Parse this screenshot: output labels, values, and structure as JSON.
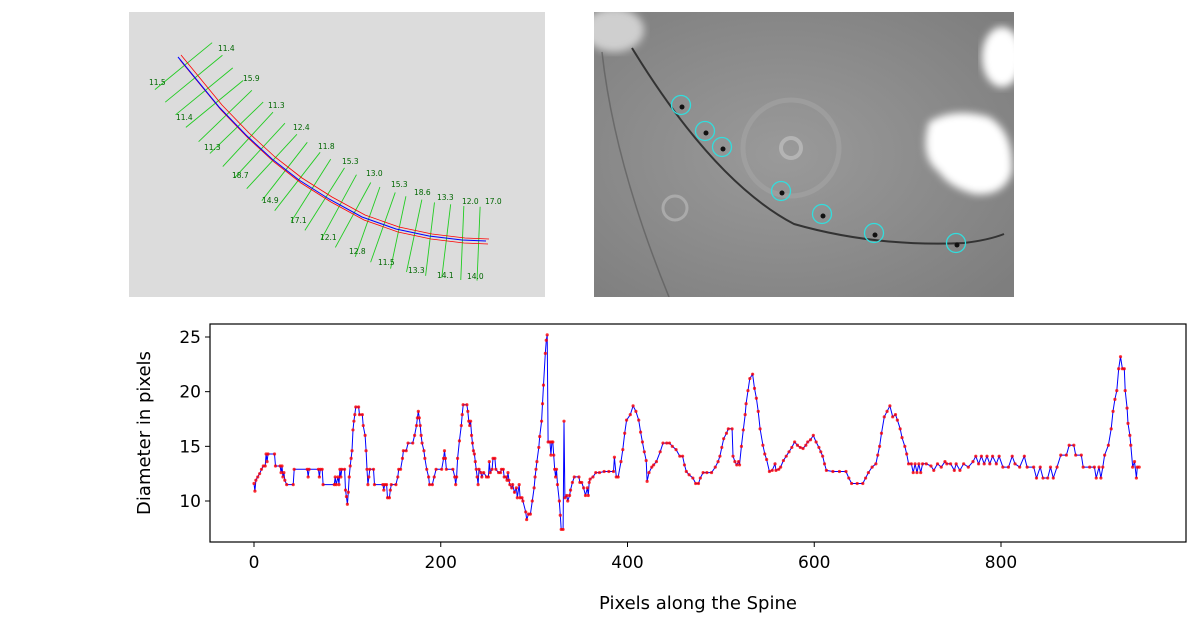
{
  "left_panel": {
    "measurement_labels": [
      "11.5",
      "11.4",
      "11.4",
      "15.9",
      "11.3",
      "11.3",
      "18.7",
      "12.4",
      "14.9",
      "11.8",
      "17.1",
      "15.3",
      "12.1",
      "13.0",
      "12.8",
      "15.3",
      "11.5",
      "18.6",
      "13.3",
      "13.3",
      "14.1",
      "12.0",
      "14.0",
      "17.0"
    ],
    "colors": {
      "spine": "#0000ff",
      "outline": "#ff0000",
      "measure_lines": "#22cc22",
      "labels": "#006600",
      "background": "#dcdcdc"
    }
  },
  "right_panel": {
    "marker_color": "#33dddd",
    "marker_count": 7
  },
  "chart_data": {
    "type": "line",
    "xlabel": "Pixels along the Spine",
    "ylabel": "Diameter in pixels",
    "xlim": [
      -50,
      1000
    ],
    "ylim": [
      6.5,
      26.3
    ],
    "xticks": [
      0,
      200,
      400,
      600,
      800
    ],
    "yticks": [
      10,
      15,
      20,
      25
    ],
    "grid": false,
    "line_color": "#0000ff",
    "marker_color": "#ff0000",
    "points": [
      [
        0,
        11.6
      ],
      [
        1,
        10.9
      ],
      [
        2,
        11.9
      ],
      [
        4,
        12.2
      ],
      [
        6,
        12.5
      ],
      [
        8,
        12.9
      ],
      [
        10,
        13.2
      ],
      [
        12,
        13.2
      ],
      [
        13,
        14.3
      ],
      [
        14,
        13.6
      ],
      [
        15,
        14.3
      ],
      [
        22,
        14.3
      ],
      [
        23,
        13.2
      ],
      [
        28,
        13.2
      ],
      [
        29,
        12.6
      ],
      [
        30,
        13.2
      ],
      [
        31,
        12.2
      ],
      [
        32,
        12.6
      ],
      [
        33,
        11.9
      ],
      [
        35,
        11.5
      ],
      [
        42,
        11.5
      ],
      [
        43,
        12.9
      ],
      [
        57,
        12.9
      ],
      [
        58,
        12.2
      ],
      [
        59,
        12.9
      ],
      [
        69,
        12.9
      ],
      [
        70,
        12.2
      ],
      [
        71,
        12.9
      ],
      [
        73,
        12.9
      ],
      [
        74,
        11.5
      ],
      [
        86,
        11.5
      ],
      [
        87,
        12.2
      ],
      [
        88,
        11.5
      ],
      [
        90,
        12.2
      ],
      [
        91,
        11.5
      ],
      [
        92,
        12.9
      ],
      [
        93,
        12.2
      ],
      [
        94,
        12.9
      ],
      [
        97,
        12.9
      ],
      [
        98,
        11.0
      ],
      [
        99,
        10.4
      ],
      [
        100,
        9.7
      ],
      [
        101,
        10.8
      ],
      [
        102,
        12.2
      ],
      [
        103,
        13.2
      ],
      [
        104,
        13.9
      ],
      [
        105,
        14.6
      ],
      [
        106,
        16.5
      ],
      [
        107,
        17.3
      ],
      [
        108,
        17.9
      ],
      [
        109,
        18.6
      ],
      [
        112,
        18.6
      ],
      [
        113,
        17.9
      ],
      [
        116,
        17.9
      ],
      [
        117,
        16.9
      ],
      [
        119,
        16.0
      ],
      [
        120,
        14.6
      ],
      [
        121,
        12.9
      ],
      [
        122,
        11.5
      ],
      [
        123,
        12.2
      ],
      [
        124,
        12.9
      ],
      [
        128,
        12.9
      ],
      [
        129,
        11.5
      ],
      [
        138,
        11.5
      ],
      [
        139,
        11.0
      ],
      [
        140,
        11.5
      ],
      [
        142,
        11.5
      ],
      [
        143,
        10.3
      ],
      [
        145,
        10.3
      ],
      [
        146,
        11.0
      ],
      [
        147,
        11.5
      ],
      [
        152,
        11.5
      ],
      [
        154,
        12.2
      ],
      [
        155,
        12.9
      ],
      [
        157,
        12.9
      ],
      [
        159,
        13.9
      ],
      [
        160,
        14.6
      ],
      [
        163,
        14.6
      ],
      [
        165,
        15.3
      ],
      [
        170,
        15.3
      ],
      [
        172,
        16.0
      ],
      [
        174,
        16.9
      ],
      [
        175,
        17.6
      ],
      [
        176,
        18.2
      ],
      [
        177,
        17.6
      ],
      [
        178,
        16.9
      ],
      [
        179,
        16.0
      ],
      [
        180,
        15.3
      ],
      [
        182,
        14.6
      ],
      [
        183,
        13.9
      ],
      [
        185,
        12.9
      ],
      [
        187,
        12.2
      ],
      [
        188,
        11.5
      ],
      [
        191,
        11.5
      ],
      [
        193,
        12.2
      ],
      [
        195,
        12.9
      ],
      [
        201,
        12.9
      ],
      [
        203,
        13.9
      ],
      [
        204,
        14.6
      ],
      [
        205,
        13.9
      ],
      [
        206,
        12.9
      ],
      [
        213,
        12.9
      ],
      [
        215,
        12.2
      ],
      [
        216,
        11.5
      ],
      [
        217,
        12.2
      ],
      [
        218,
        13.9
      ],
      [
        220,
        15.5
      ],
      [
        222,
        16.9
      ],
      [
        223,
        17.9
      ],
      [
        224,
        18.8
      ],
      [
        228,
        18.8
      ],
      [
        229,
        18.2
      ],
      [
        230,
        17.3
      ],
      [
        231,
        16.9
      ],
      [
        232,
        17.3
      ],
      [
        233,
        16.0
      ],
      [
        234,
        15.3
      ],
      [
        235,
        14.6
      ],
      [
        236,
        14.3
      ],
      [
        237,
        13.6
      ],
      [
        238,
        12.9
      ],
      [
        239,
        12.2
      ],
      [
        240,
        11.5
      ],
      [
        241,
        12.9
      ],
      [
        243,
        12.6
      ],
      [
        244,
        12.2
      ],
      [
        246,
        12.6
      ],
      [
        249,
        12.2
      ],
      [
        251,
        12.2
      ],
      [
        252,
        13.6
      ],
      [
        253,
        12.6
      ],
      [
        255,
        12.9
      ],
      [
        256,
        13.9
      ],
      [
        258,
        13.9
      ],
      [
        259,
        12.9
      ],
      [
        262,
        12.6
      ],
      [
        264,
        12.6
      ],
      [
        265,
        12.9
      ],
      [
        267,
        12.9
      ],
      [
        268,
        12.2
      ],
      [
        270,
        12.2
      ],
      [
        271,
        11.9
      ],
      [
        272,
        12.6
      ],
      [
        273,
        11.9
      ],
      [
        274,
        11.5
      ],
      [
        276,
        11.2
      ],
      [
        277,
        11.5
      ],
      [
        279,
        10.8
      ],
      [
        281,
        11.2
      ],
      [
        282,
        10.3
      ],
      [
        284,
        11.5
      ],
      [
        285,
        10.3
      ],
      [
        287,
        10.3
      ],
      [
        288,
        10.0
      ],
      [
        291,
        9.0
      ],
      [
        292,
        8.3
      ],
      [
        294,
        8.8
      ],
      [
        296,
        8.8
      ],
      [
        298,
        10.0
      ],
      [
        300,
        11.2
      ],
      [
        301,
        12.2
      ],
      [
        302,
        12.9
      ],
      [
        303,
        13.6
      ],
      [
        305,
        14.9
      ],
      [
        306,
        15.9
      ],
      [
        308,
        17.3
      ],
      [
        309,
        18.9
      ],
      [
        310,
        20.6
      ],
      [
        312,
        23.5
      ],
      [
        313,
        24.7
      ],
      [
        314,
        25.2
      ],
      [
        315,
        15.4
      ],
      [
        317,
        15.4
      ],
      [
        318,
        14.2
      ],
      [
        319,
        15.4
      ],
      [
        320,
        15.4
      ],
      [
        321,
        14.2
      ],
      [
        322,
        12.9
      ],
      [
        323,
        12.2
      ],
      [
        324,
        12.9
      ],
      [
        325,
        11.5
      ],
      [
        327,
        10.0
      ],
      [
        328,
        8.7
      ],
      [
        329,
        7.4
      ],
      [
        331,
        7.4
      ],
      [
        332,
        17.3
      ],
      [
        333,
        10.3
      ],
      [
        335,
        10.5
      ],
      [
        336,
        10.0
      ],
      [
        338,
        10.5
      ],
      [
        339,
        11.0
      ],
      [
        341,
        11.7
      ],
      [
        343,
        12.2
      ],
      [
        348,
        12.2
      ],
      [
        349,
        11.7
      ],
      [
        351,
        11.7
      ],
      [
        353,
        11.2
      ],
      [
        355,
        10.5
      ],
      [
        357,
        11.2
      ],
      [
        358,
        10.5
      ],
      [
        359,
        11.7
      ],
      [
        360,
        12.0
      ],
      [
        363,
        12.2
      ],
      [
        366,
        12.6
      ],
      [
        370,
        12.6
      ],
      [
        375,
        12.7
      ],
      [
        380,
        12.7
      ],
      [
        385,
        12.7
      ],
      [
        386,
        14.0
      ],
      [
        388,
        12.2
      ],
      [
        390,
        12.2
      ],
      [
        393,
        13.6
      ],
      [
        395,
        14.7
      ],
      [
        397,
        16.2
      ],
      [
        399,
        17.4
      ],
      [
        403,
        17.9
      ],
      [
        406,
        18.7
      ],
      [
        409,
        18.2
      ],
      [
        412,
        17.4
      ],
      [
        414,
        16.3
      ],
      [
        416,
        15.4
      ],
      [
        418,
        14.5
      ],
      [
        420,
        13.7
      ],
      [
        421,
        11.8
      ],
      [
        423,
        12.6
      ],
      [
        426,
        13.1
      ],
      [
        428,
        13.3
      ],
      [
        431,
        13.6
      ],
      [
        435,
        14.5
      ],
      [
        438,
        15.3
      ],
      [
        442,
        15.3
      ],
      [
        445,
        15.3
      ],
      [
        448,
        15.0
      ],
      [
        452,
        14.7
      ],
      [
        456,
        14.1
      ],
      [
        459,
        14.1
      ],
      [
        461,
        13.3
      ],
      [
        463,
        12.7
      ],
      [
        466,
        12.4
      ],
      [
        470,
        12.1
      ],
      [
        473,
        11.6
      ],
      [
        476,
        11.6
      ],
      [
        478,
        12.1
      ],
      [
        481,
        12.6
      ],
      [
        485,
        12.6
      ],
      [
        490,
        12.6
      ],
      [
        494,
        13.1
      ],
      [
        497,
        13.6
      ],
      [
        499,
        14.1
      ],
      [
        501,
        14.9
      ],
      [
        503,
        15.7
      ],
      [
        506,
        16.2
      ],
      [
        508,
        16.6
      ],
      [
        512,
        16.6
      ],
      [
        513,
        14.1
      ],
      [
        515,
        13.6
      ],
      [
        517,
        13.3
      ],
      [
        519,
        13.6
      ],
      [
        520,
        13.3
      ],
      [
        522,
        15.0
      ],
      [
        524,
        16.5
      ],
      [
        526,
        17.9
      ],
      [
        527,
        18.9
      ],
      [
        529,
        20.1
      ],
      [
        531,
        21.2
      ],
      [
        534,
        21.6
      ],
      [
        536,
        20.3
      ],
      [
        538,
        19.4
      ],
      [
        540,
        18.2
      ],
      [
        542,
        16.6
      ],
      [
        545,
        15.1
      ],
      [
        547,
        14.3
      ],
      [
        549,
        13.8
      ],
      [
        552,
        12.7
      ],
      [
        555,
        12.8
      ],
      [
        558,
        13.4
      ],
      [
        559,
        12.8
      ],
      [
        562,
        12.9
      ],
      [
        564,
        13.1
      ],
      [
        567,
        13.7
      ],
      [
        570,
        14.1
      ],
      [
        573,
        14.5
      ],
      [
        576,
        14.9
      ],
      [
        579,
        15.4
      ],
      [
        582,
        15.1
      ],
      [
        585,
        14.9
      ],
      [
        588,
        14.8
      ],
      [
        591,
        15.1
      ],
      [
        593,
        15.4
      ],
      [
        596,
        15.6
      ],
      [
        599,
        16.0
      ],
      [
        602,
        15.4
      ],
      [
        605,
        14.9
      ],
      [
        607,
        14.5
      ],
      [
        609,
        14.1
      ],
      [
        611,
        13.4
      ],
      [
        613,
        12.8
      ],
      [
        620,
        12.7
      ],
      [
        627,
        12.7
      ],
      [
        634,
        12.7
      ],
      [
        637,
        12.1
      ],
      [
        640,
        11.6
      ],
      [
        646,
        11.6
      ],
      [
        652,
        11.6
      ],
      [
        655,
        12.1
      ],
      [
        658,
        12.6
      ],
      [
        662,
        13.1
      ],
      [
        666,
        13.4
      ],
      [
        668,
        14.2
      ],
      [
        670,
        15.0
      ],
      [
        672,
        16.2
      ],
      [
        675,
        17.7
      ],
      [
        678,
        18.2
      ],
      [
        681,
        18.7
      ],
      [
        684,
        17.7
      ],
      [
        687,
        17.9
      ],
      [
        689,
        17.4
      ],
      [
        692,
        16.6
      ],
      [
        694,
        15.8
      ],
      [
        697,
        15.0
      ],
      [
        699,
        14.3
      ],
      [
        701,
        13.4
      ],
      [
        704,
        13.4
      ],
      [
        706,
        12.6
      ],
      [
        708,
        13.4
      ],
      [
        710,
        12.6
      ],
      [
        712,
        13.4
      ],
      [
        714,
        12.6
      ],
      [
        716,
        13.4
      ],
      [
        720,
        13.4
      ],
      [
        725,
        13.2
      ],
      [
        728,
        12.8
      ],
      [
        732,
        13.4
      ],
      [
        736,
        13.1
      ],
      [
        740,
        13.6
      ],
      [
        742,
        13.4
      ],
      [
        746,
        13.4
      ],
      [
        750,
        12.8
      ],
      [
        752,
        13.4
      ],
      [
        756,
        12.8
      ],
      [
        760,
        13.4
      ],
      [
        765,
        13.1
      ],
      [
        770,
        13.6
      ],
      [
        773,
        14.1
      ],
      [
        776,
        13.4
      ],
      [
        779,
        14.1
      ],
      [
        782,
        13.4
      ],
      [
        785,
        14.1
      ],
      [
        788,
        13.4
      ],
      [
        791,
        14.1
      ],
      [
        795,
        13.4
      ],
      [
        798,
        14.1
      ],
      [
        802,
        13.1
      ],
      [
        808,
        13.1
      ],
      [
        812,
        14.1
      ],
      [
        815,
        13.4
      ],
      [
        820,
        13.1
      ],
      [
        825,
        14.1
      ],
      [
        828,
        13.1
      ],
      [
        835,
        13.1
      ],
      [
        838,
        12.1
      ],
      [
        842,
        13.1
      ],
      [
        845,
        12.1
      ],
      [
        850,
        12.1
      ],
      [
        853,
        13.1
      ],
      [
        856,
        12.1
      ],
      [
        860,
        13.1
      ],
      [
        864,
        14.2
      ],
      [
        870,
        14.2
      ],
      [
        873,
        15.1
      ],
      [
        878,
        15.1
      ],
      [
        880,
        14.2
      ],
      [
        886,
        14.2
      ],
      [
        888,
        13.1
      ],
      [
        895,
        13.1
      ],
      [
        900,
        13.1
      ],
      [
        902,
        12.1
      ],
      [
        905,
        13.1
      ],
      [
        907,
        12.1
      ],
      [
        909,
        13.1
      ],
      [
        911,
        14.2
      ],
      [
        915,
        15.1
      ],
      [
        918,
        16.6
      ],
      [
        920,
        18.2
      ],
      [
        922,
        19.3
      ],
      [
        924,
        20.1
      ],
      [
        926,
        22.1
      ],
      [
        928,
        23.2
      ],
      [
        930,
        22.1
      ],
      [
        932,
        22.1
      ],
      [
        933,
        20.1
      ],
      [
        935,
        18.5
      ],
      [
        936,
        17.1
      ],
      [
        938,
        16.0
      ],
      [
        939,
        15.1
      ],
      [
        941,
        13.1
      ],
      [
        943,
        13.6
      ],
      [
        945,
        12.1
      ],
      [
        946,
        13.1
      ],
      [
        948,
        13.1
      ]
    ]
  }
}
